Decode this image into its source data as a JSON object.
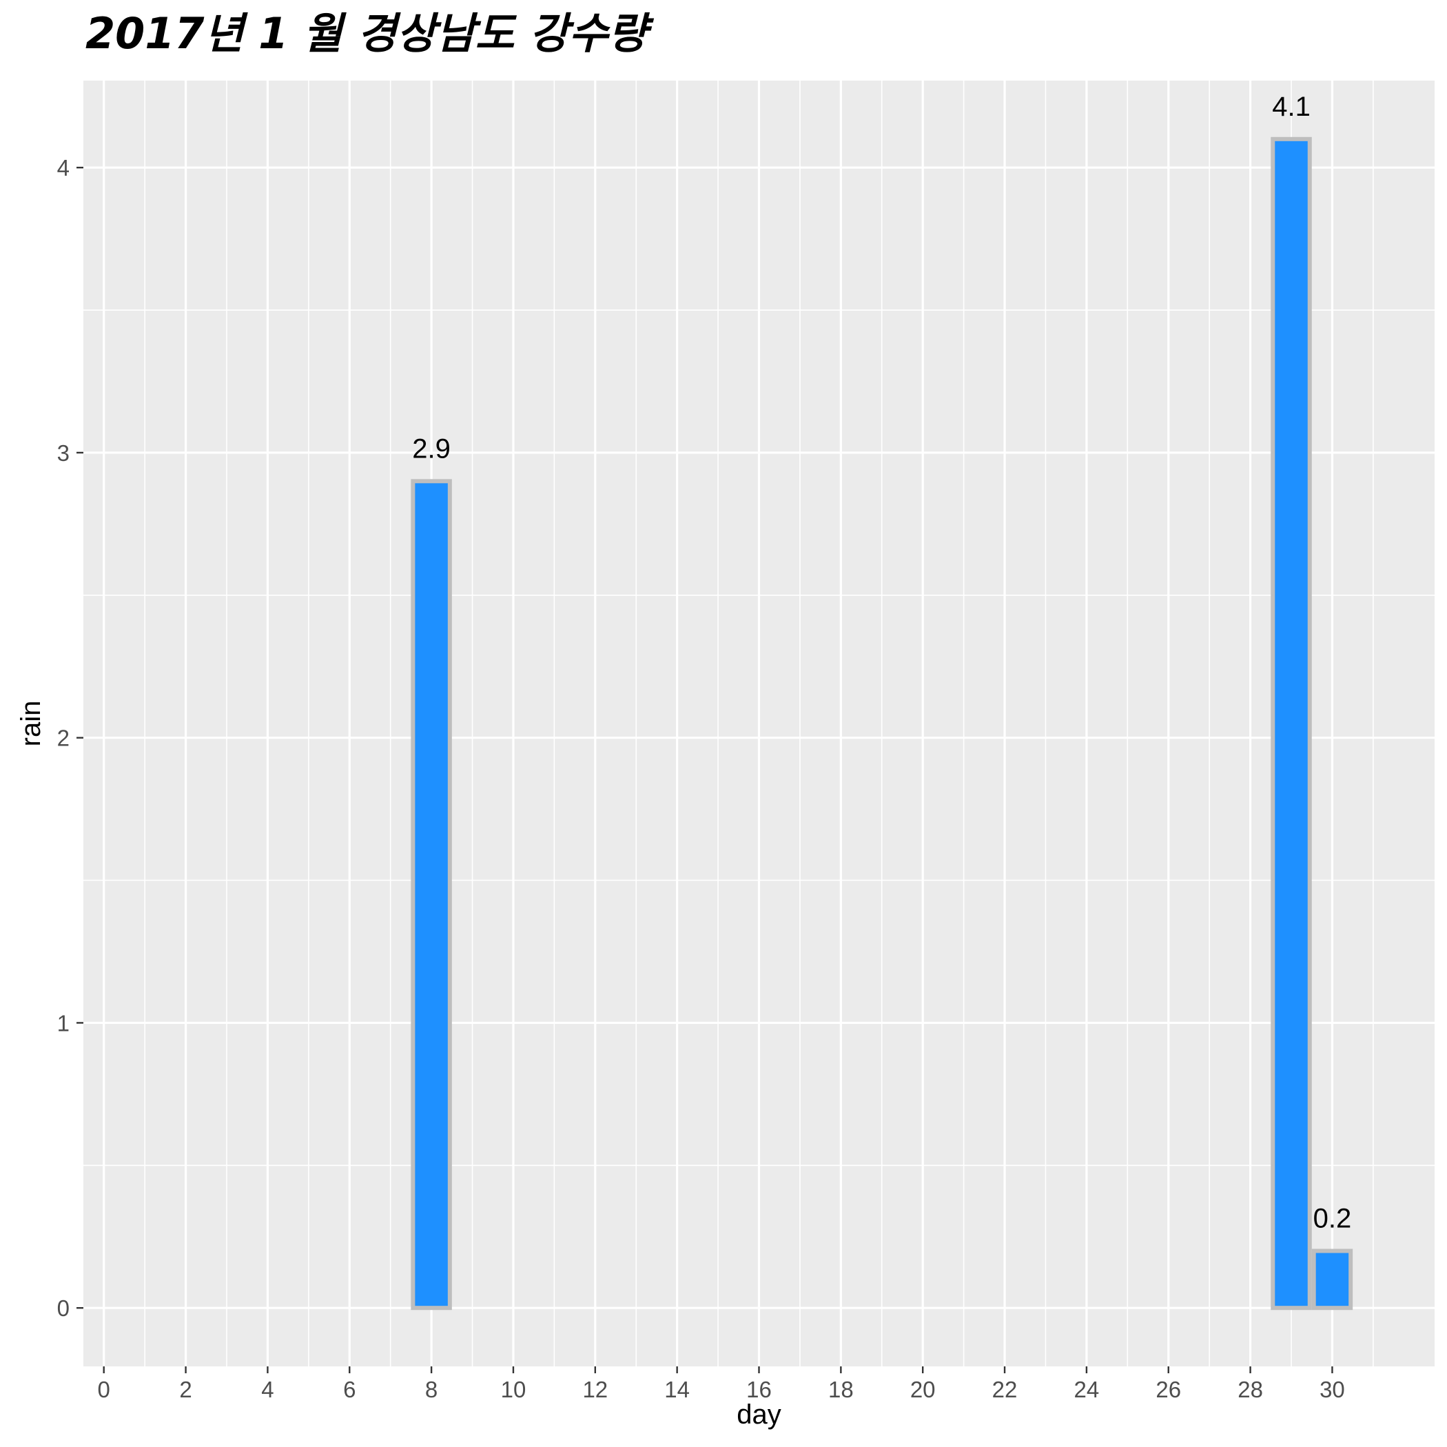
{
  "chart_data": {
    "type": "bar",
    "title": "2017년 1 월 경상남도 강수량",
    "xlabel": "day",
    "ylabel": "rain",
    "x": [
      8,
      29,
      30
    ],
    "values": [
      2.9,
      4.1,
      0.2
    ],
    "data_labels": [
      "2.9",
      "4.1",
      "0.2"
    ],
    "xlim": [
      -0.5,
      32.5
    ],
    "ylim": [
      -0.205,
      4.305
    ],
    "x_ticks": [
      0,
      2,
      4,
      6,
      8,
      10,
      12,
      14,
      16,
      18,
      20,
      22,
      24,
      26,
      28,
      30
    ],
    "x_tick_labels": [
      "0",
      "2",
      "4",
      "6",
      "8",
      "10",
      "12",
      "14",
      "16",
      "18",
      "20",
      "22",
      "24",
      "26",
      "28",
      "30"
    ],
    "y_ticks": [
      0,
      1,
      2,
      3,
      4
    ],
    "y_tick_labels": [
      "0",
      "1",
      "2",
      "3",
      "4"
    ],
    "grid": true,
    "legend": "none",
    "colors": {
      "bar_fill": "#1e90ff",
      "bar_outline": "#bebebe",
      "panel_background": "#ebebeb",
      "grid": "#ffffff",
      "tick_text": "#4d4d4d"
    }
  }
}
